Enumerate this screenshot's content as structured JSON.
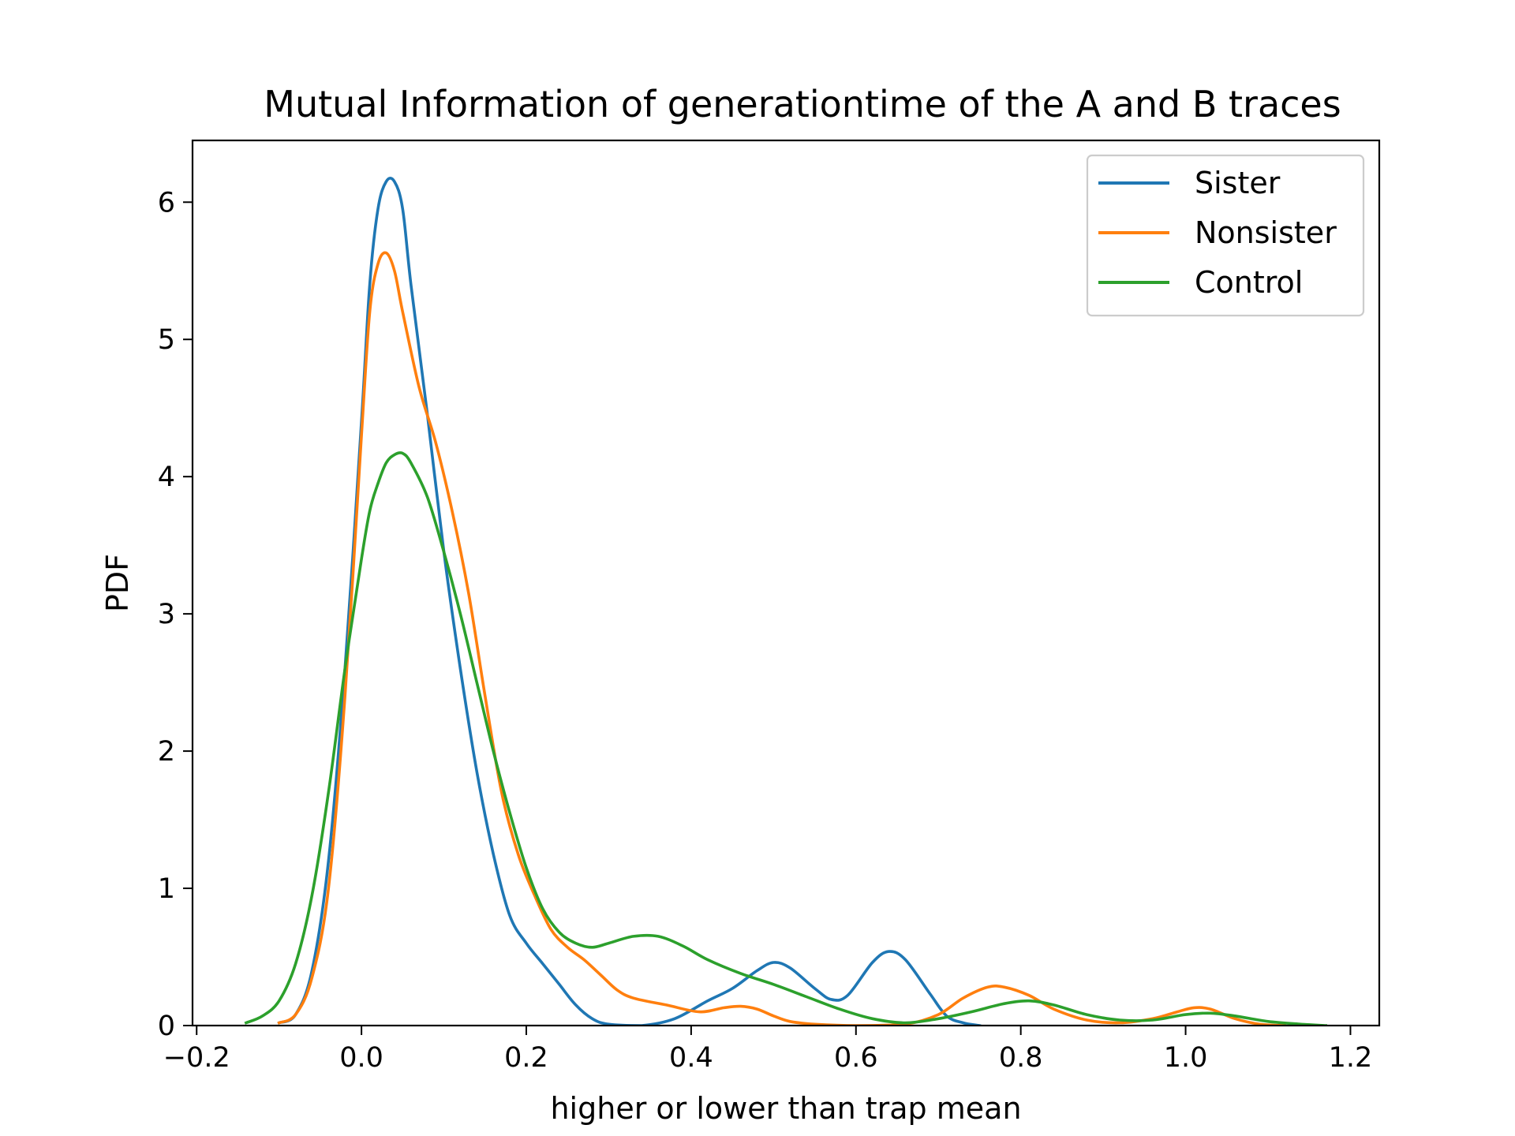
{
  "chart_data": {
    "type": "line",
    "title": "Mutual Information of generationtime of the A and B traces",
    "xlabel": "higher or lower than trap mean",
    "ylabel": "PDF",
    "xlim": [
      -0.205,
      1.235
    ],
    "ylim": [
      0,
      6.45
    ],
    "xticks": [
      -0.2,
      0.0,
      0.2,
      0.4,
      0.6,
      0.8,
      1.0,
      1.2
    ],
    "xtick_labels": [
      "−0.2",
      "0.0",
      "0.2",
      "0.4",
      "0.6",
      "0.8",
      "1.0",
      "1.2"
    ],
    "yticks": [
      0,
      1,
      2,
      3,
      4,
      5,
      6
    ],
    "ytick_labels": [
      "0",
      "1",
      "2",
      "3",
      "4",
      "5",
      "6"
    ],
    "grid": false,
    "legend_position": "top-right",
    "series": [
      {
        "name": "Sister",
        "color": "#1f77b4",
        "points": [
          [
            -0.1,
            0.02
          ],
          [
            -0.08,
            0.08
          ],
          [
            -0.06,
            0.4
          ],
          [
            -0.04,
            1.2
          ],
          [
            -0.02,
            2.6
          ],
          [
            0.0,
            4.4
          ],
          [
            0.01,
            5.4
          ],
          [
            0.02,
            5.95
          ],
          [
            0.03,
            6.15
          ],
          [
            0.04,
            6.15
          ],
          [
            0.05,
            5.95
          ],
          [
            0.06,
            5.4
          ],
          [
            0.08,
            4.45
          ],
          [
            0.1,
            3.45
          ],
          [
            0.12,
            2.6
          ],
          [
            0.14,
            1.85
          ],
          [
            0.16,
            1.25
          ],
          [
            0.18,
            0.8
          ],
          [
            0.2,
            0.6
          ],
          [
            0.22,
            0.45
          ],
          [
            0.24,
            0.3
          ],
          [
            0.26,
            0.15
          ],
          [
            0.28,
            0.05
          ],
          [
            0.3,
            0.01
          ],
          [
            0.34,
            0.0
          ],
          [
            0.38,
            0.05
          ],
          [
            0.42,
            0.18
          ],
          [
            0.45,
            0.27
          ],
          [
            0.48,
            0.4
          ],
          [
            0.5,
            0.46
          ],
          [
            0.52,
            0.42
          ],
          [
            0.55,
            0.27
          ],
          [
            0.57,
            0.19
          ],
          [
            0.59,
            0.22
          ],
          [
            0.62,
            0.46
          ],
          [
            0.64,
            0.54
          ],
          [
            0.66,
            0.48
          ],
          [
            0.69,
            0.23
          ],
          [
            0.71,
            0.07
          ],
          [
            0.73,
            0.02
          ],
          [
            0.75,
            0.0
          ]
        ]
      },
      {
        "name": "Nonsister",
        "color": "#ff7f0e",
        "points": [
          [
            -0.1,
            0.02
          ],
          [
            -0.08,
            0.08
          ],
          [
            -0.06,
            0.35
          ],
          [
            -0.04,
            1.0
          ],
          [
            -0.02,
            2.4
          ],
          [
            0.0,
            4.3
          ],
          [
            0.01,
            5.2
          ],
          [
            0.02,
            5.55
          ],
          [
            0.03,
            5.63
          ],
          [
            0.04,
            5.5
          ],
          [
            0.05,
            5.2
          ],
          [
            0.07,
            4.65
          ],
          [
            0.09,
            4.25
          ],
          [
            0.11,
            3.75
          ],
          [
            0.13,
            3.15
          ],
          [
            0.15,
            2.4
          ],
          [
            0.17,
            1.7
          ],
          [
            0.19,
            1.25
          ],
          [
            0.21,
            0.95
          ],
          [
            0.23,
            0.7
          ],
          [
            0.25,
            0.57
          ],
          [
            0.27,
            0.48
          ],
          [
            0.29,
            0.37
          ],
          [
            0.31,
            0.26
          ],
          [
            0.33,
            0.2
          ],
          [
            0.37,
            0.15
          ],
          [
            0.41,
            0.1
          ],
          [
            0.44,
            0.13
          ],
          [
            0.46,
            0.14
          ],
          [
            0.48,
            0.12
          ],
          [
            0.5,
            0.07
          ],
          [
            0.52,
            0.03
          ],
          [
            0.55,
            0.01
          ],
          [
            0.6,
            0.0
          ],
          [
            0.66,
            0.01
          ],
          [
            0.7,
            0.08
          ],
          [
            0.73,
            0.2
          ],
          [
            0.76,
            0.28
          ],
          [
            0.78,
            0.28
          ],
          [
            0.81,
            0.22
          ],
          [
            0.84,
            0.12
          ],
          [
            0.88,
            0.04
          ],
          [
            0.92,
            0.02
          ],
          [
            0.96,
            0.05
          ],
          [
            0.99,
            0.1
          ],
          [
            1.01,
            0.13
          ],
          [
            1.03,
            0.12
          ],
          [
            1.06,
            0.05
          ],
          [
            1.09,
            0.01
          ],
          [
            1.12,
            0.0
          ]
        ]
      },
      {
        "name": "Control",
        "color": "#2ca02c",
        "points": [
          [
            -0.14,
            0.02
          ],
          [
            -0.12,
            0.07
          ],
          [
            -0.1,
            0.18
          ],
          [
            -0.08,
            0.45
          ],
          [
            -0.06,
            0.95
          ],
          [
            -0.04,
            1.7
          ],
          [
            -0.02,
            2.6
          ],
          [
            0.0,
            3.4
          ],
          [
            0.01,
            3.75
          ],
          [
            0.02,
            3.95
          ],
          [
            0.03,
            4.1
          ],
          [
            0.04,
            4.16
          ],
          [
            0.05,
            4.17
          ],
          [
            0.06,
            4.1
          ],
          [
            0.08,
            3.85
          ],
          [
            0.1,
            3.45
          ],
          [
            0.12,
            3.0
          ],
          [
            0.14,
            2.5
          ],
          [
            0.16,
            2.0
          ],
          [
            0.18,
            1.55
          ],
          [
            0.2,
            1.15
          ],
          [
            0.22,
            0.85
          ],
          [
            0.24,
            0.68
          ],
          [
            0.26,
            0.6
          ],
          [
            0.28,
            0.57
          ],
          [
            0.3,
            0.6
          ],
          [
            0.33,
            0.65
          ],
          [
            0.36,
            0.65
          ],
          [
            0.39,
            0.58
          ],
          [
            0.42,
            0.48
          ],
          [
            0.46,
            0.38
          ],
          [
            0.5,
            0.3
          ],
          [
            0.54,
            0.21
          ],
          [
            0.58,
            0.12
          ],
          [
            0.62,
            0.05
          ],
          [
            0.66,
            0.02
          ],
          [
            0.7,
            0.05
          ],
          [
            0.74,
            0.1
          ],
          [
            0.78,
            0.16
          ],
          [
            0.81,
            0.18
          ],
          [
            0.84,
            0.15
          ],
          [
            0.88,
            0.08
          ],
          [
            0.92,
            0.04
          ],
          [
            0.96,
            0.04
          ],
          [
            1.0,
            0.08
          ],
          [
            1.03,
            0.09
          ],
          [
            1.06,
            0.07
          ],
          [
            1.1,
            0.03
          ],
          [
            1.14,
            0.01
          ],
          [
            1.17,
            0.0
          ]
        ]
      }
    ]
  }
}
